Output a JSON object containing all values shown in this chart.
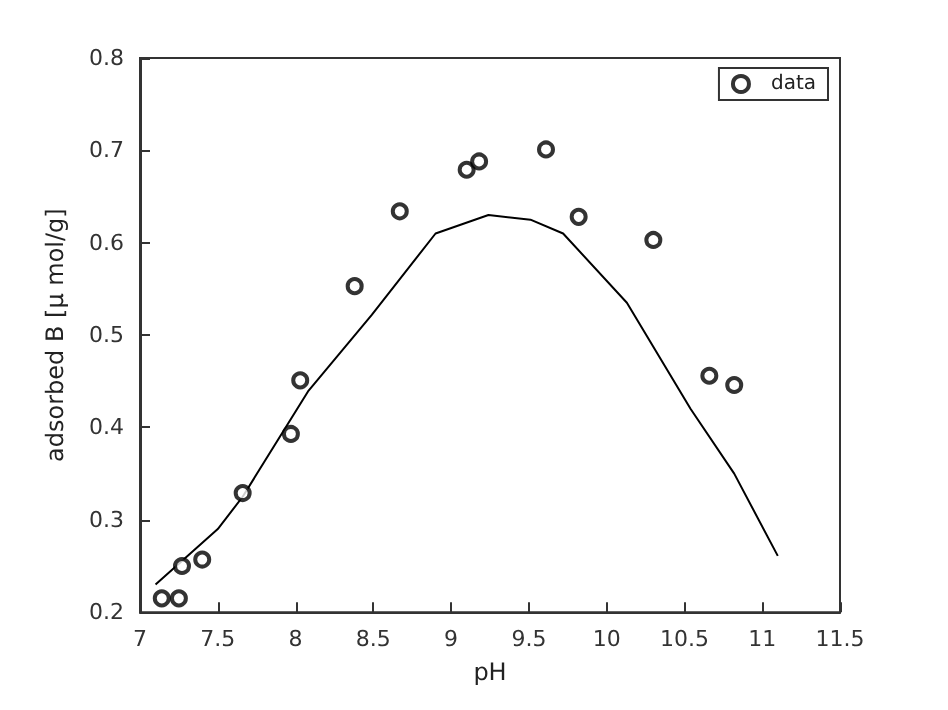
{
  "chart_data": {
    "type": "line",
    "xlabel": "pH",
    "ylabel": "adsorbed B [μ mol/g]",
    "xlim": [
      7,
      11.5
    ],
    "xticks": [
      7,
      7.5,
      8,
      8.5,
      9,
      9.5,
      10,
      10.5,
      11,
      11.5
    ],
    "ylim": [
      0.2,
      0.8
    ],
    "yticks": [
      0.2,
      0.3,
      0.4,
      0.5,
      0.6,
      0.7,
      0.8
    ],
    "grid": false,
    "legend": "top right",
    "series": [
      {
        "color": "#000000",
        "marker": "none",
        "x": [
          7.1,
          7.5,
          7.66,
          8.08,
          8.49,
          8.9,
          9.24,
          9.51,
          9.72,
          10.13,
          10.54,
          10.82,
          11.1
        ],
        "values": [
          0.23,
          0.29,
          0.325,
          0.439,
          0.522,
          0.61,
          0.63,
          0.625,
          0.61,
          0.535,
          0.42,
          0.35,
          0.261
        ]
      },
      {
        "type": "scatter",
        "name": "data",
        "color": "#000000",
        "marker": "circle",
        "x": [
          7.14,
          7.25,
          7.27,
          7.4,
          7.66,
          7.97,
          8.03,
          8.38,
          8.67,
          9.1,
          9.18,
          9.61,
          9.82,
          10.3,
          10.66,
          10.82
        ],
        "values": [
          0.215,
          0.215,
          0.25,
          0.257,
          0.329,
          0.393,
          0.451,
          0.553,
          0.634,
          0.679,
          0.688,
          0.701,
          0.628,
          0.603,
          0.456,
          0.446
        ]
      }
    ]
  }
}
